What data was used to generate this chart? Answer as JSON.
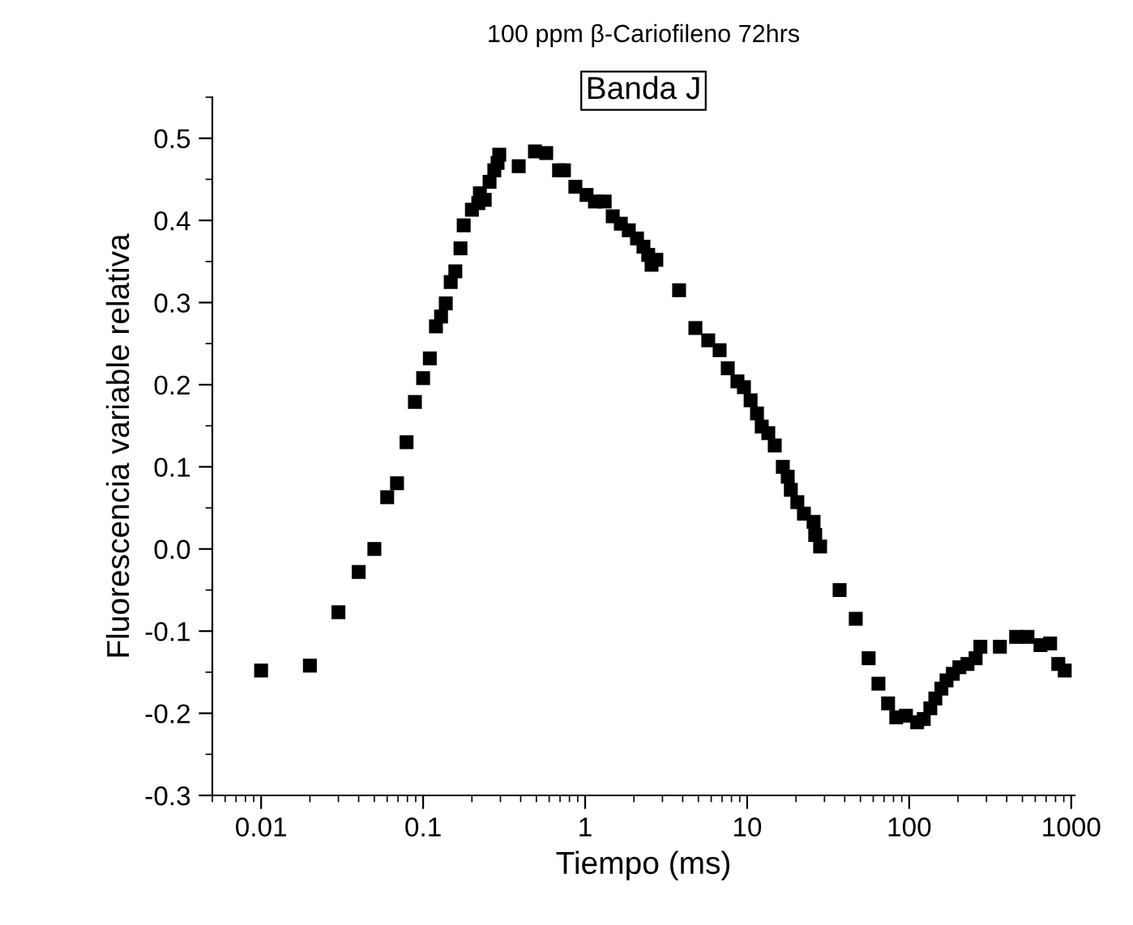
{
  "chart_data": {
    "type": "scatter",
    "title": "100 ppm β-Cariofileno 72hrs",
    "annotations": [
      "Banda J"
    ],
    "xlabel": "Tiempo (ms)",
    "ylabel": "Fluorescencia variable relativa",
    "log": "x",
    "marker": "square",
    "grid": false,
    "legend": false,
    "xlim": [
      0.005,
      1050
    ],
    "xticks": [
      0.01,
      0.1,
      1,
      10,
      100,
      1000
    ],
    "ylim": [
      -0.3,
      0.55
    ],
    "yticks": [
      {
        "value": -0.3,
        "label": "-0.3"
      },
      {
        "value": -0.2,
        "label": "-0.2"
      },
      {
        "value": -0.1,
        "label": "-0.1"
      },
      {
        "value": 0.0,
        "label": "0.0"
      },
      {
        "value": 0.1,
        "label": "0.1"
      },
      {
        "value": 0.2,
        "label": "0.2"
      },
      {
        "value": 0.3,
        "label": "0.3"
      },
      {
        "value": 0.4,
        "label": "0.4"
      },
      {
        "value": 0.5,
        "label": "0.5"
      }
    ],
    "series": [
      {
        "color": "#000000",
        "x": [
          0.01,
          0.02,
          0.03,
          0.04,
          0.05,
          0.06,
          0.069,
          0.079,
          0.089,
          0.1,
          0.11,
          0.12,
          0.129,
          0.138,
          0.148,
          0.158,
          0.17,
          0.178,
          0.2,
          0.219,
          0.224,
          0.24,
          0.257,
          0.275,
          0.288,
          0.295,
          0.389,
          0.49,
          0.575,
          0.69,
          0.74,
          0.87,
          1.02,
          1.15,
          1.32,
          1.48,
          1.66,
          1.86,
          2.09,
          2.29,
          2.45,
          2.57,
          2.75,
          3.8,
          4.79,
          5.75,
          6.76,
          7.59,
          8.71,
          9.55,
          10.5,
          11.5,
          12.3,
          13.5,
          14.8,
          16.6,
          17.8,
          18.6,
          20.4,
          22.4,
          25.7,
          26.3,
          28.2,
          37.2,
          46.8,
          56.2,
          64.6,
          74.1,
          83.2,
          95.5,
          112,
          123,
          135,
          145,
          158,
          170,
          186,
          204,
          229,
          257,
          275,
          363,
          457,
          537,
          646,
          741,
          832,
          912
        ],
        "values": [
          -0.148,
          -0.142,
          -0.077,
          -0.028,
          0.0,
          0.063,
          0.08,
          0.13,
          0.179,
          0.208,
          0.232,
          0.271,
          0.283,
          0.299,
          0.325,
          0.338,
          0.366,
          0.394,
          0.413,
          0.421,
          0.433,
          0.425,
          0.447,
          0.461,
          0.47,
          0.48,
          0.466,
          0.484,
          0.482,
          0.461,
          0.461,
          0.441,
          0.431,
          0.423,
          0.423,
          0.405,
          0.396,
          0.388,
          0.378,
          0.368,
          0.358,
          0.346,
          0.352,
          0.315,
          0.269,
          0.254,
          0.242,
          0.22,
          0.204,
          0.197,
          0.181,
          0.165,
          0.149,
          0.141,
          0.126,
          0.1,
          0.088,
          0.072,
          0.057,
          0.043,
          0.033,
          0.017,
          0.003,
          -0.05,
          -0.085,
          -0.133,
          -0.164,
          -0.188,
          -0.205,
          -0.203,
          -0.211,
          -0.207,
          -0.194,
          -0.182,
          -0.17,
          -0.16,
          -0.152,
          -0.144,
          -0.14,
          -0.133,
          -0.119,
          -0.119,
          -0.107,
          -0.107,
          -0.117,
          -0.115,
          -0.14,
          -0.148
        ]
      }
    ]
  }
}
